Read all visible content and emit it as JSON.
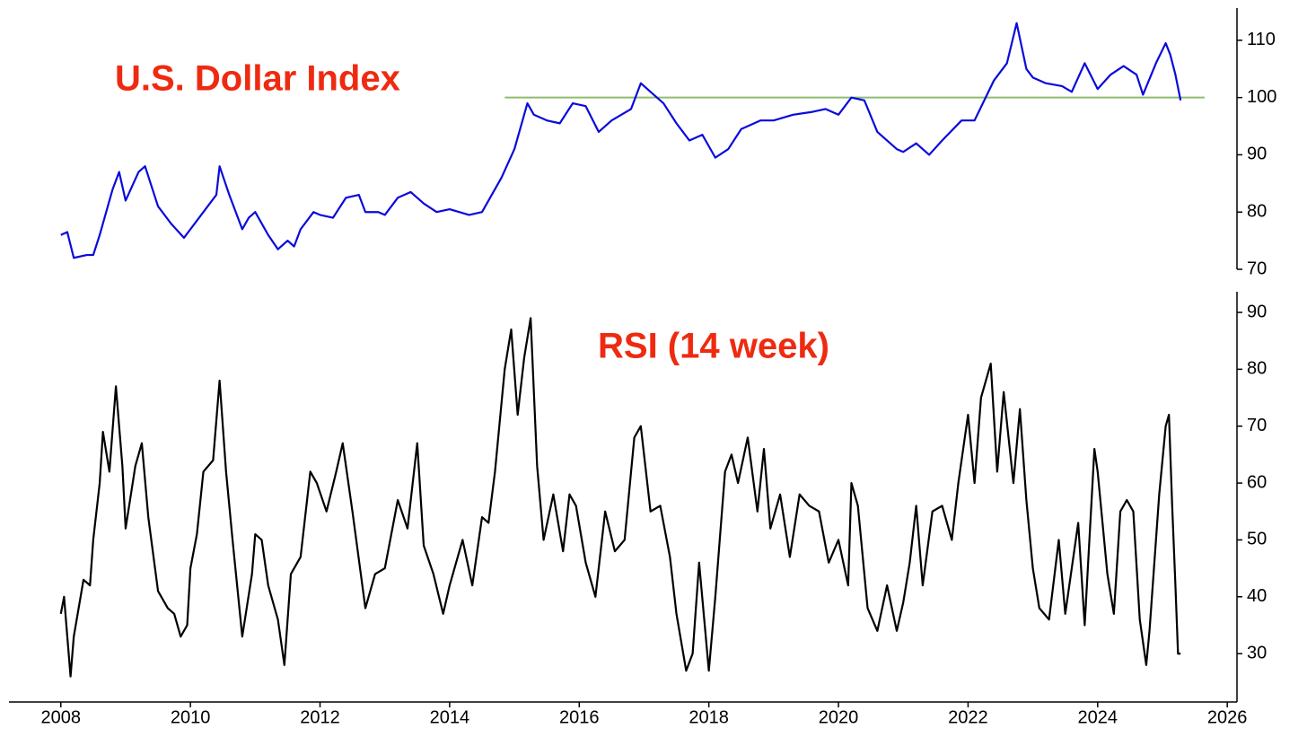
{
  "chart_data": [
    {
      "type": "line",
      "title": "U.S. Dollar Index",
      "color": "#0a0adc",
      "xlim": [
        2007.2,
        2026.15
      ],
      "ylim": [
        70,
        115
      ],
      "yticks": [
        70,
        80,
        90,
        100,
        110
      ],
      "reference_line": {
        "value": 100,
        "x": [
          2014.85,
          2025.65
        ],
        "color": "#8fbc6f"
      },
      "x": [
        2008.0,
        2008.1,
        2008.2,
        2008.4,
        2008.5,
        2008.6,
        2008.8,
        2008.9,
        2009.0,
        2009.2,
        2009.3,
        2009.5,
        2009.7,
        2009.9,
        2010.0,
        2010.2,
        2010.4,
        2010.45,
        2010.6,
        2010.8,
        2010.9,
        2011.0,
        2011.2,
        2011.35,
        2011.5,
        2011.6,
        2011.7,
        2011.9,
        2012.0,
        2012.2,
        2012.4,
        2012.6,
        2012.7,
        2012.9,
        2013.0,
        2013.2,
        2013.4,
        2013.6,
        2013.8,
        2014.0,
        2014.3,
        2014.5,
        2014.6,
        2014.8,
        2015.0,
        2015.2,
        2015.3,
        2015.5,
        2015.7,
        2015.9,
        2016.1,
        2016.3,
        2016.5,
        2016.8,
        2016.95,
        2017.1,
        2017.3,
        2017.5,
        2017.7,
        2017.9,
        2018.1,
        2018.3,
        2018.5,
        2018.8,
        2019.0,
        2019.3,
        2019.6,
        2019.8,
        2020.0,
        2020.2,
        2020.4,
        2020.6,
        2020.9,
        2021.0,
        2021.2,
        2021.4,
        2021.6,
        2021.9,
        2022.1,
        2022.4,
        2022.6,
        2022.75,
        2022.9,
        2023.0,
        2023.2,
        2023.45,
        2023.6,
        2023.8,
        2024.0,
        2024.2,
        2024.4,
        2024.6,
        2024.7,
        2024.9,
        2025.05,
        2025.12,
        2025.2,
        2025.28
      ],
      "values": [
        76,
        76.5,
        72,
        72.5,
        72.5,
        76,
        84,
        87,
        82,
        87,
        88,
        81,
        78,
        75.5,
        77,
        80,
        83,
        88,
        83,
        77,
        79,
        80,
        76,
        73.5,
        75,
        74,
        77,
        80,
        79.5,
        79,
        82.5,
        83,
        80,
        80,
        79.5,
        82.5,
        83.5,
        81.5,
        80,
        80.5,
        79.5,
        80,
        82,
        86,
        91,
        99,
        97,
        96,
        95.5,
        99,
        98.5,
        94,
        96,
        98,
        102.5,
        101,
        99,
        95.5,
        92.5,
        93.5,
        89.5,
        91,
        94.5,
        96,
        96,
        97,
        97.5,
        98,
        97,
        100,
        99.5,
        94,
        91,
        90.5,
        92,
        90,
        92.5,
        96,
        96,
        103,
        106,
        113,
        105,
        103.5,
        102.5,
        102,
        101,
        106,
        101.5,
        104,
        105.5,
        104,
        100.5,
        106,
        109.5,
        107.5,
        104,
        99.5
      ]
    },
    {
      "type": "line",
      "title": "RSI (14 week)",
      "color": "#000000",
      "xlim": [
        2007.2,
        2026.15
      ],
      "xticks": [
        2008,
        2010,
        2012,
        2014,
        2016,
        2018,
        2020,
        2022,
        2024,
        2026
      ],
      "ylim": [
        21.5,
        93
      ],
      "yticks": [
        30,
        40,
        50,
        60,
        70,
        80,
        90
      ],
      "x": [
        2008.0,
        2008.05,
        2008.15,
        2008.2,
        2008.35,
        2008.45,
        2008.5,
        2008.6,
        2008.65,
        2008.75,
        2008.85,
        2008.95,
        2009.0,
        2009.15,
        2009.25,
        2009.35,
        2009.5,
        2009.65,
        2009.75,
        2009.85,
        2009.95,
        2010.0,
        2010.1,
        2010.2,
        2010.35,
        2010.45,
        2010.55,
        2010.65,
        2010.8,
        2010.95,
        2011.0,
        2011.1,
        2011.2,
        2011.35,
        2011.45,
        2011.55,
        2011.7,
        2011.85,
        2011.95,
        2012.1,
        2012.25,
        2012.35,
        2012.5,
        2012.7,
        2012.85,
        2013.0,
        2013.2,
        2013.35,
        2013.5,
        2013.6,
        2013.75,
        2013.9,
        2014.0,
        2014.2,
        2014.35,
        2014.5,
        2014.6,
        2014.7,
        2014.85,
        2014.95,
        2015.05,
        2015.15,
        2015.25,
        2015.35,
        2015.45,
        2015.6,
        2015.75,
        2015.85,
        2015.95,
        2016.1,
        2016.25,
        2016.4,
        2016.55,
        2016.7,
        2016.85,
        2016.95,
        2017.1,
        2017.25,
        2017.4,
        2017.5,
        2017.65,
        2017.75,
        2017.85,
        2018.0,
        2018.1,
        2018.25,
        2018.35,
        2018.45,
        2018.6,
        2018.75,
        2018.85,
        2018.95,
        2019.1,
        2019.25,
        2019.4,
        2019.55,
        2019.7,
        2019.85,
        2020.0,
        2020.15,
        2020.2,
        2020.3,
        2020.45,
        2020.6,
        2020.75,
        2020.9,
        2021.0,
        2021.1,
        2021.2,
        2021.3,
        2021.45,
        2021.6,
        2021.75,
        2021.85,
        2022.0,
        2022.1,
        2022.2,
        2022.35,
        2022.45,
        2022.55,
        2022.7,
        2022.8,
        2022.9,
        2023.0,
        2023.1,
        2023.25,
        2023.4,
        2023.5,
        2023.7,
        2023.8,
        2023.95,
        2024.0,
        2024.15,
        2024.25,
        2024.35,
        2024.45,
        2024.55,
        2024.65,
        2024.75,
        2024.8,
        2024.95,
        2025.05,
        2025.1,
        2025.15,
        2025.2,
        2025.24,
        2025.28
      ],
      "values": [
        37,
        40,
        26,
        33,
        43,
        42,
        50,
        60,
        69,
        62,
        77,
        63,
        52,
        63,
        67,
        54,
        41,
        38,
        37,
        33,
        35,
        45,
        51,
        62,
        64,
        78,
        62,
        50,
        33,
        44,
        51,
        50,
        42,
        36,
        28,
        44,
        47,
        62,
        60,
        55,
        62,
        67,
        55,
        38,
        44,
        45,
        57,
        52,
        67,
        49,
        44,
        37,
        42,
        50,
        42,
        54,
        53,
        62,
        80,
        87,
        72,
        82,
        89,
        63,
        50,
        58,
        48,
        58,
        56,
        46,
        40,
        55,
        48,
        50,
        68,
        70,
        55,
        56,
        47,
        37,
        27,
        30,
        46,
        27,
        40,
        62,
        65,
        60,
        68,
        55,
        66,
        52,
        58,
        47,
        58,
        56,
        55,
        46,
        50,
        42,
        60,
        56,
        38,
        34,
        42,
        34,
        39,
        46,
        56,
        42,
        55,
        56,
        50,
        60,
        72,
        60,
        75,
        81,
        62,
        76,
        60,
        73,
        57,
        45,
        38,
        36,
        50,
        37,
        53,
        35,
        66,
        62,
        44,
        37,
        55,
        57,
        55,
        36,
        28,
        34,
        58,
        70,
        72,
        56,
        42,
        30,
        30
      ]
    }
  ]
}
